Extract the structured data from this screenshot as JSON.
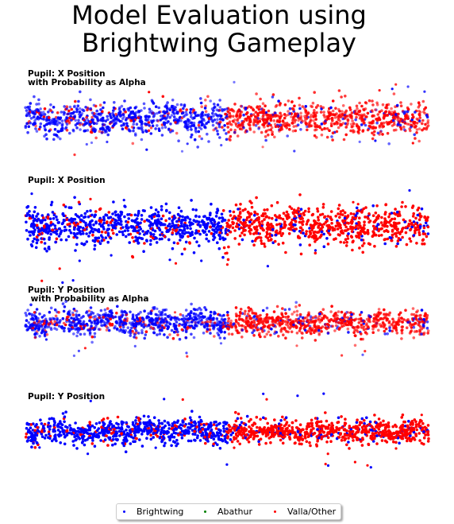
{
  "chart_data": {
    "type": "scatter",
    "title": "Model Evaluation using\nBrightwing Gameplay",
    "legend_position": "bottom-center",
    "axes_visible": false,
    "grid": false,
    "legend": [
      {
        "name": "Brightwing",
        "color": "#0000ff"
      },
      {
        "name": "Abathur",
        "color": "#008000"
      },
      {
        "name": "Valla/Other",
        "color": "#ff0000"
      }
    ],
    "panels": [
      {
        "label": "Pupil: X Position\nwith Probability as Alpha",
        "alpha_by_probability": true,
        "y_range": [
          -1.6,
          1.6
        ]
      },
      {
        "label": "Pupil: X Position",
        "alpha_by_probability": false,
        "y_range": [
          -1.6,
          1.6
        ]
      },
      {
        "label": "Pupil: Y Position\n with Probability as Alpha",
        "alpha_by_probability": true,
        "y_range": [
          -1.6,
          1.6
        ]
      },
      {
        "label": "Pupil: Y Position",
        "alpha_by_probability": false,
        "y_range": [
          -1.6,
          1.6
        ]
      }
    ]
  }
}
